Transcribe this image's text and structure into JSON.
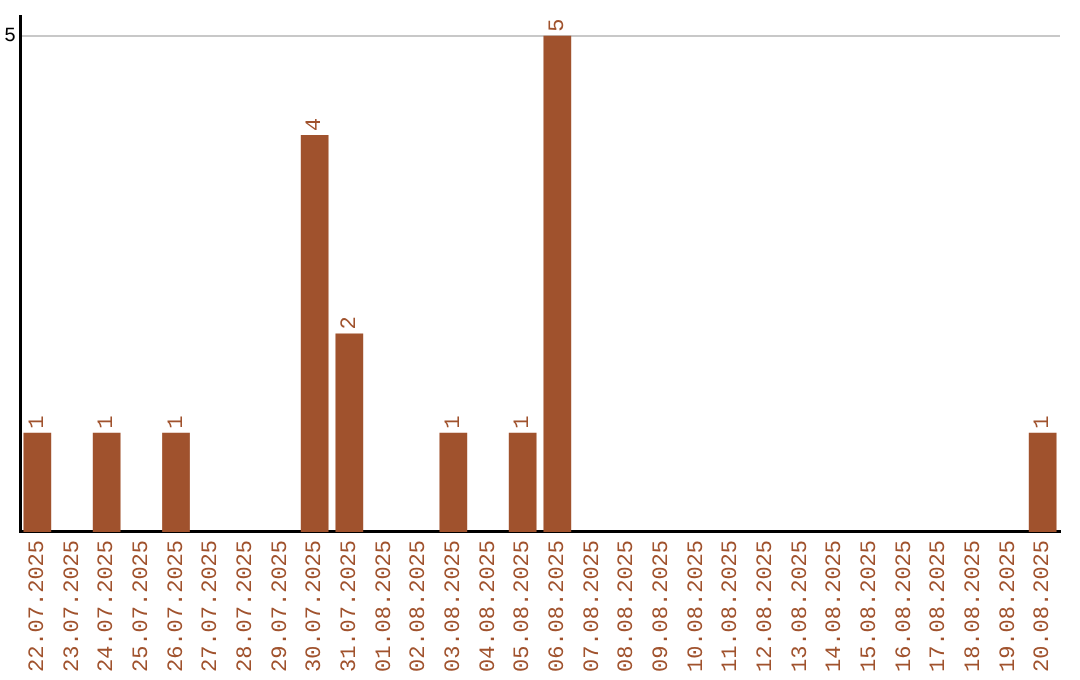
{
  "chart_data": {
    "type": "bar",
    "categories": [
      "22.07.2025",
      "23.07.2025",
      "24.07.2025",
      "25.07.2025",
      "26.07.2025",
      "27.07.2025",
      "28.07.2025",
      "29.07.2025",
      "30.07.2025",
      "31.07.2025",
      "01.08.2025",
      "02.08.2025",
      "03.08.2025",
      "04.08.2025",
      "05.08.2025",
      "06.08.2025",
      "07.08.2025",
      "08.08.2025",
      "09.08.2025",
      "10.08.2025",
      "11.08.2025",
      "12.08.2025",
      "13.08.2025",
      "14.08.2025",
      "15.08.2025",
      "16.08.2025",
      "17.08.2025",
      "18.08.2025",
      "19.08.2025",
      "20.08.2025"
    ],
    "values": [
      1,
      0,
      1,
      0,
      1,
      0,
      0,
      0,
      4,
      2,
      0,
      0,
      1,
      0,
      1,
      5,
      0,
      0,
      0,
      0,
      0,
      0,
      0,
      0,
      0,
      0,
      0,
      0,
      0,
      1
    ],
    "value_labels": [
      "1",
      null,
      "1",
      null,
      "1",
      null,
      null,
      null,
      "4",
      "2",
      null,
      null,
      "1",
      null,
      "1",
      "5",
      null,
      null,
      null,
      null,
      null,
      null,
      null,
      null,
      null,
      null,
      null,
      null,
      null,
      "1"
    ],
    "color": "#a0522d",
    "ylim": [
      0,
      5.2
    ],
    "yticks": [
      5
    ],
    "grid": "y",
    "legend": false
  }
}
